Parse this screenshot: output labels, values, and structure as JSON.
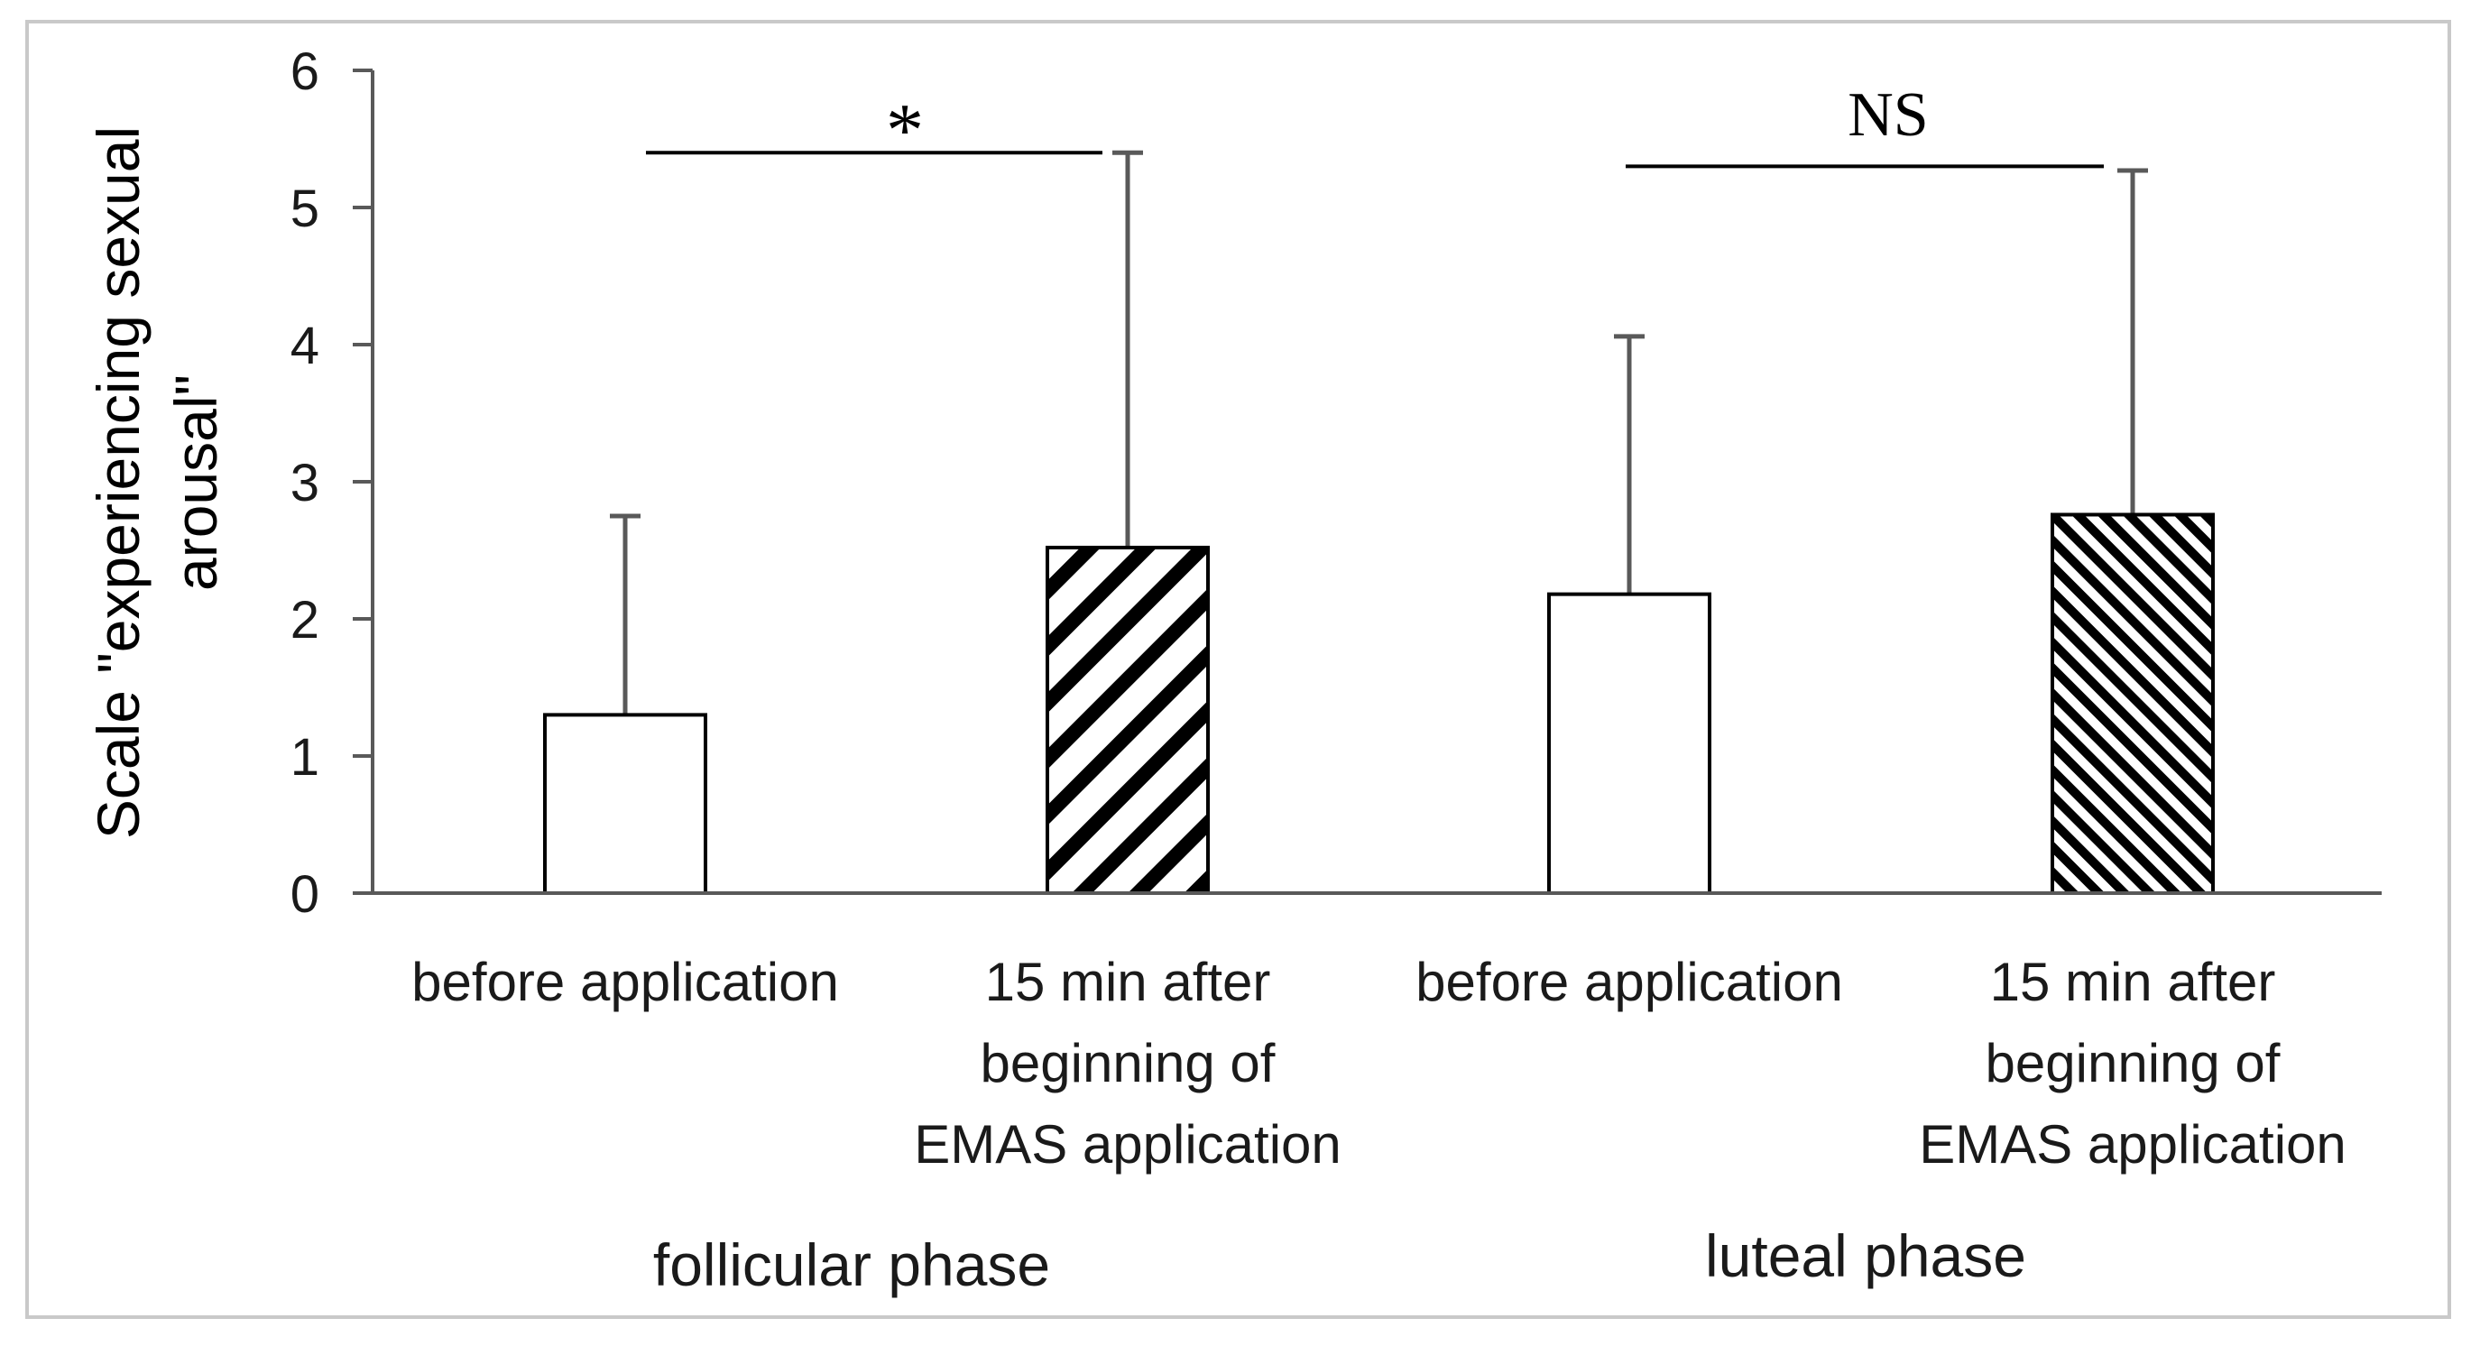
{
  "chart_data": {
    "type": "bar",
    "ylabel_lines": [
      "Scale \"experiencing sexual",
      "arousal\""
    ],
    "ylim": [
      0,
      6
    ],
    "yticks": [
      "0",
      "1",
      "2",
      "3",
      "4",
      "5",
      "6"
    ],
    "bars": [
      {
        "label_lines": [
          "before application"
        ],
        "group": "follicular phase",
        "value": 1.3,
        "error": 1.45,
        "fill": "white"
      },
      {
        "label_lines": [
          "15 min after",
          "beginning of",
          "EMAS application"
        ],
        "group": "follicular phase",
        "value": 2.52,
        "error": 2.88,
        "fill": "diagonal-stripes"
      },
      {
        "label_lines": [
          "before application"
        ],
        "group": "luteal phase",
        "value": 2.18,
        "error": 1.88,
        "fill": "white"
      },
      {
        "label_lines": [
          "15 min after",
          "beginning of",
          "EMAS application"
        ],
        "group": "luteal phase",
        "value": 2.76,
        "error": 2.51,
        "fill": "fine-diagonal-stripes"
      }
    ],
    "groups": [
      "follicular phase",
      "luteal phase"
    ],
    "significance": [
      {
        "from_bar": 0,
        "to_bar": 1,
        "label": "*",
        "level": 5.4
      },
      {
        "from_bar": 2,
        "to_bar": 3,
        "label": "NS",
        "level": 5.3
      }
    ],
    "colors": {
      "bar_stroke": "#000000",
      "error_bar": "#595959",
      "axis": "#595959"
    }
  }
}
